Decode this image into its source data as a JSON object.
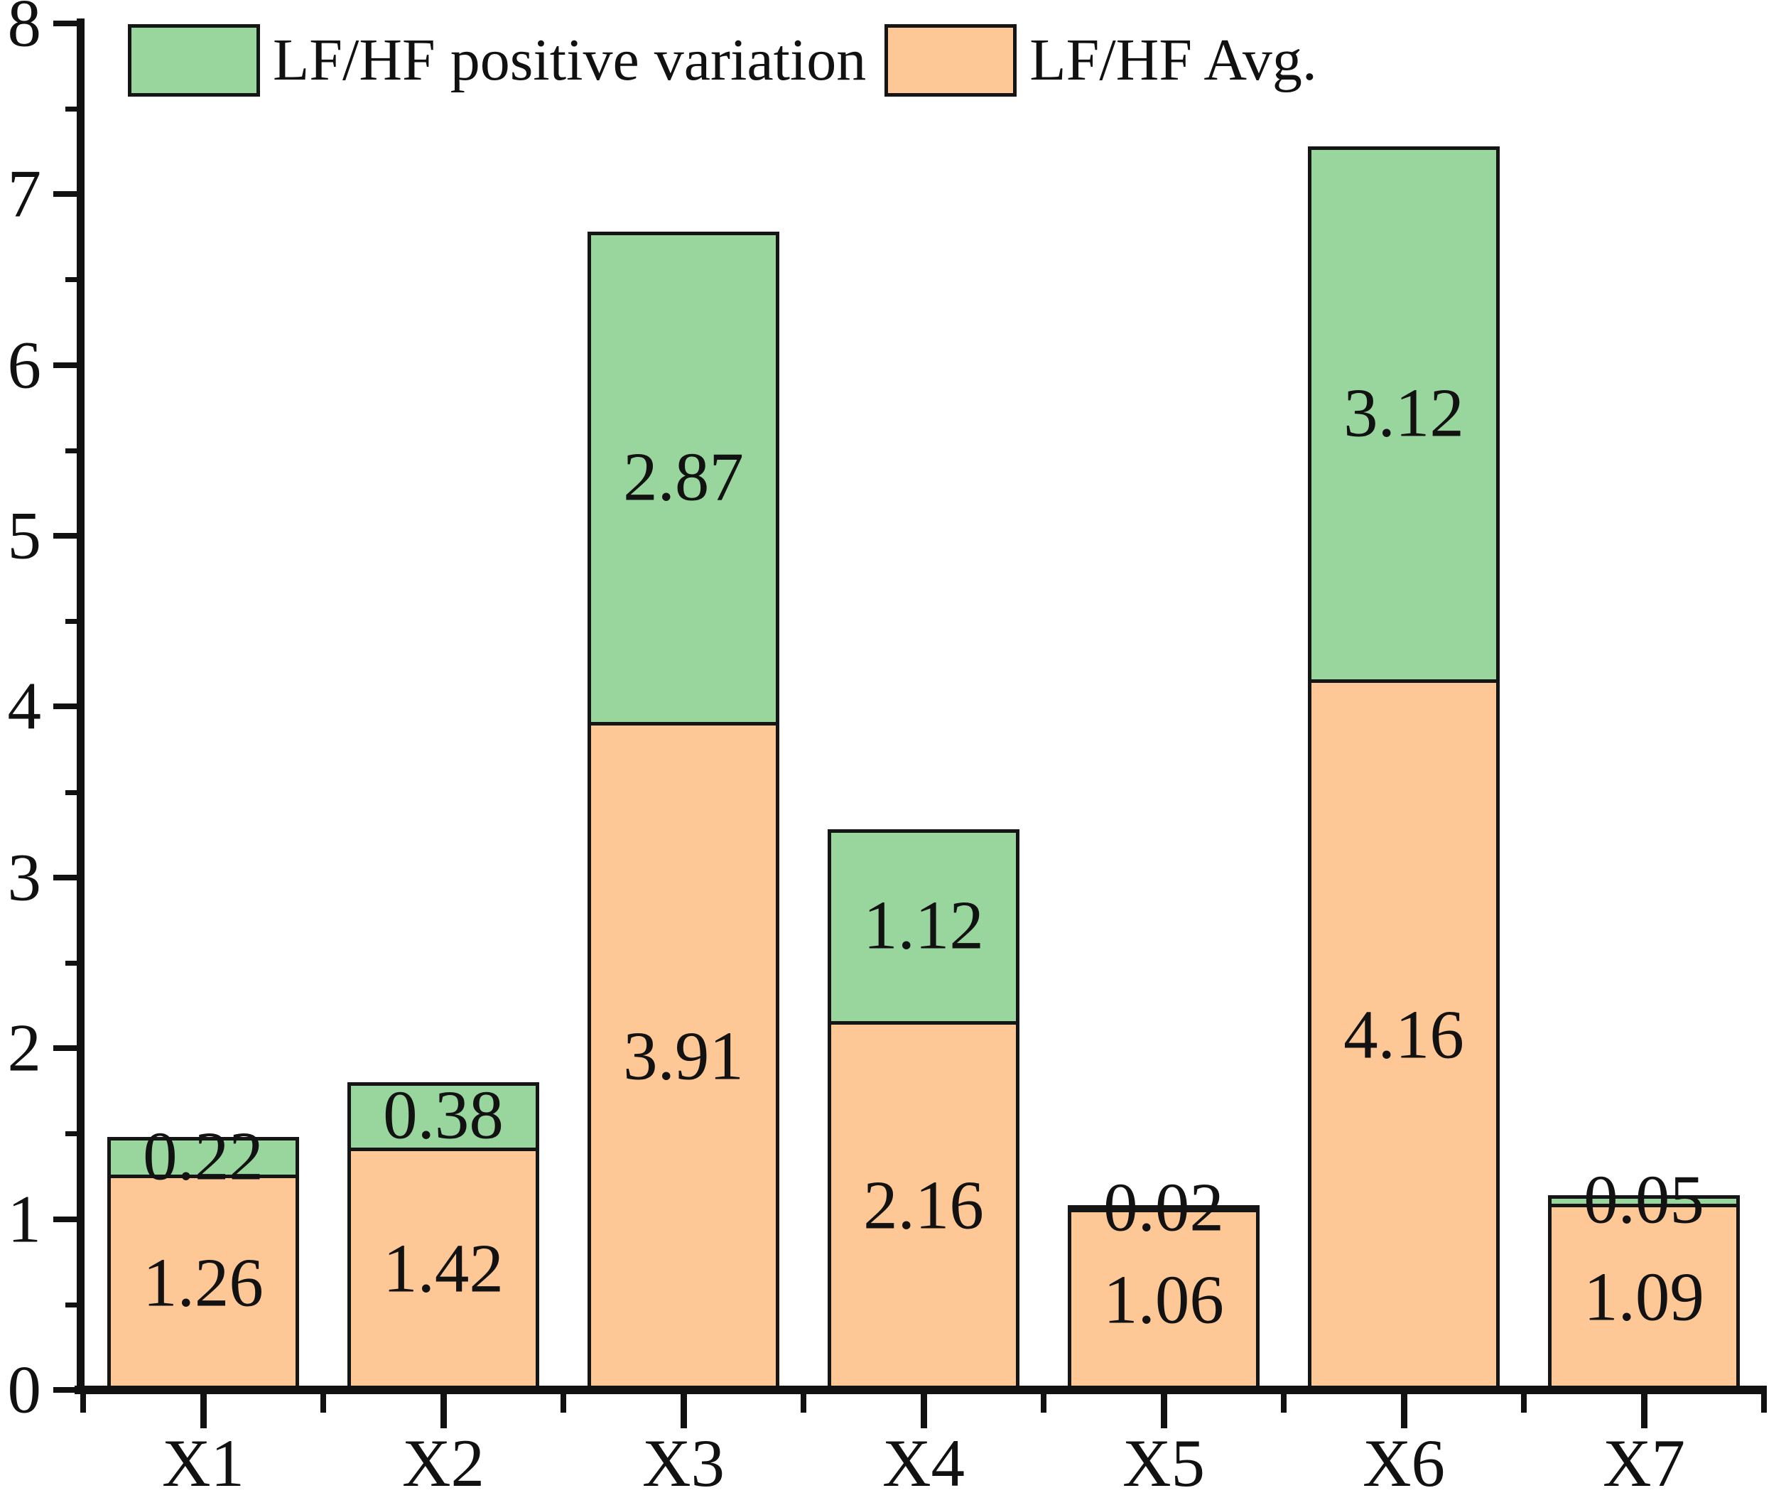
{
  "chart_data": {
    "type": "bar",
    "stacked": true,
    "title": "",
    "xlabel": "",
    "ylabel": "",
    "categories": [
      "X1",
      "X2",
      "X3",
      "X4",
      "X5",
      "X6",
      "X7"
    ],
    "series": [
      {
        "name": "LF/HF Avg.",
        "color": "#FDC796",
        "values": [
          1.26,
          1.42,
          3.91,
          2.16,
          1.06,
          4.16,
          1.09
        ],
        "labels": [
          "1.26",
          "1.42",
          "3.91",
          "2.16",
          "1.06",
          "4.16",
          "1.09"
        ]
      },
      {
        "name": "LF/HF positive variation",
        "color": "#99D69E",
        "values": [
          0.22,
          0.38,
          2.87,
          1.12,
          0.02,
          3.12,
          0.05
        ],
        "labels": [
          "0.22",
          "0.38",
          "2.87",
          "1.12",
          "0.02",
          "3.12",
          "0.05"
        ]
      }
    ],
    "totals": [
      1.48,
      1.8,
      6.78,
      3.28,
      1.08,
      7.28,
      1.14
    ],
    "ylim": [
      0,
      8
    ],
    "y_major_ticks": [
      0,
      1,
      2,
      3,
      4,
      5,
      6,
      7,
      8
    ],
    "y_tick_labels": [
      "0",
      "1",
      "2",
      "3",
      "4",
      "5",
      "6",
      "7",
      "8"
    ],
    "y_minor_step": 0.5,
    "grid": false,
    "legend_position": "top-left-inside",
    "bar_outline_color": "#151515"
  },
  "legend": {
    "items": [
      {
        "label": "LF/HF positive variation",
        "swatch_color": "#99D69E"
      },
      {
        "label": "LF/HF Avg.",
        "swatch_color": "#FDC796"
      }
    ]
  },
  "colors": {
    "background": "#ffffff",
    "axis": "#111111",
    "text": "#111111"
  }
}
